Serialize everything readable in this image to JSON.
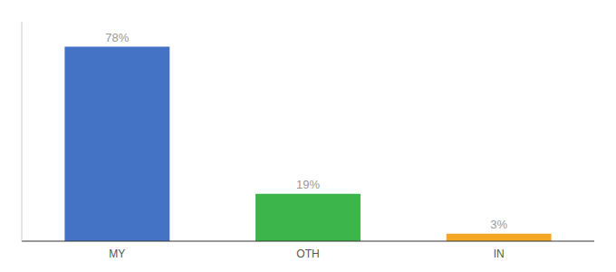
{
  "chart_data": {
    "type": "bar",
    "categories": [
      "MY",
      "OTH",
      "IN"
    ],
    "values": [
      78,
      19,
      3
    ],
    "value_labels": [
      "78%",
      "19%",
      "3%"
    ],
    "colors": [
      "#4472c4",
      "#3cb54a",
      "#f5a623"
    ],
    "ylim": [
      0,
      88
    ],
    "data_labels": true,
    "tick_labels": "x"
  }
}
